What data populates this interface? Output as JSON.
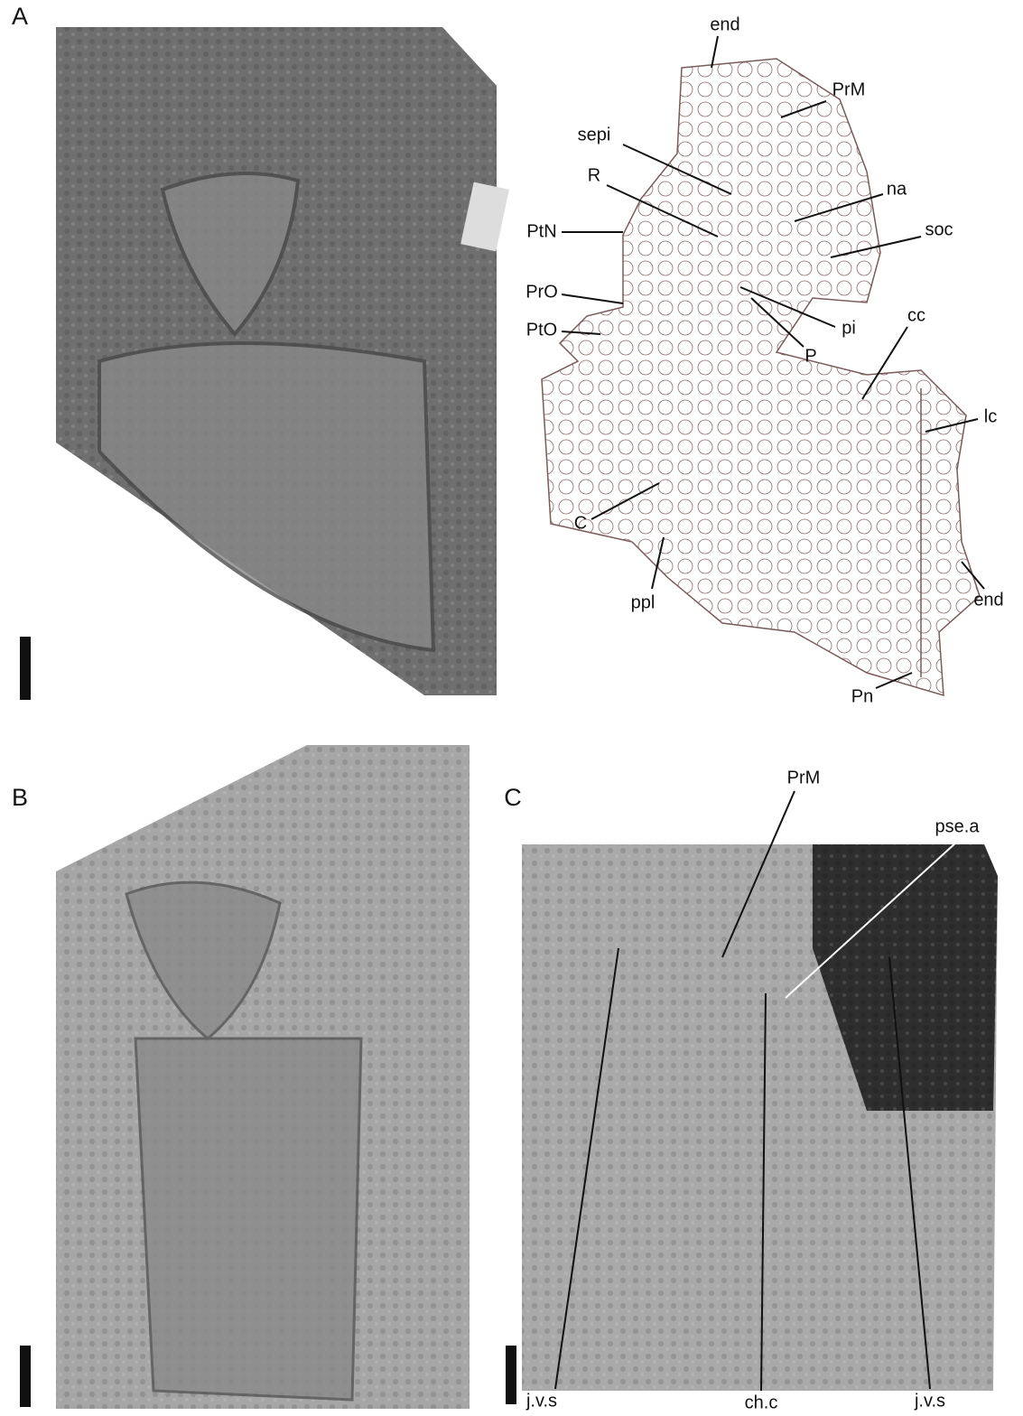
{
  "panels": [
    {
      "label": "A",
      "annotations": [
        "end",
        "PrM",
        "sepi",
        "R",
        "na",
        "PtN",
        "soc",
        "PrO",
        "pi",
        "PtO",
        "P",
        "cc",
        "lc",
        "C",
        "ppl",
        "end",
        "Pn"
      ]
    },
    {
      "label": "B",
      "annotations": []
    },
    {
      "label": "C",
      "annotations": [
        "PrM",
        "pse.a",
        "j.v.s",
        "ch.c",
        "j.v.s"
      ]
    }
  ]
}
